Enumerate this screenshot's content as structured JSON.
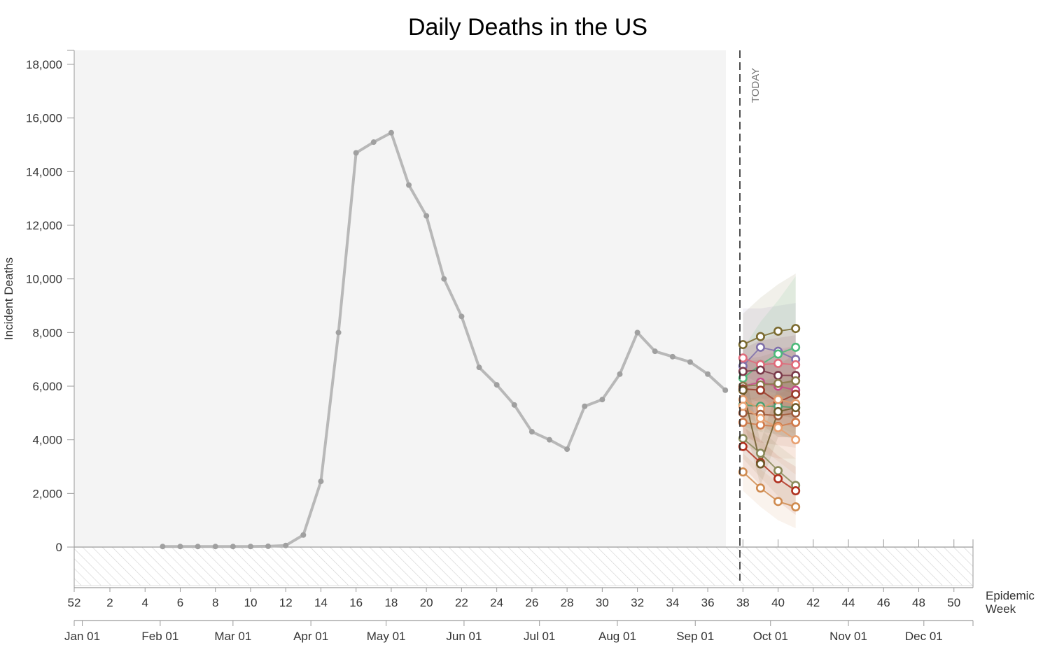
{
  "colors": {
    "background_panel": "#f4f4f4",
    "observed": "#b8b8b8",
    "observed_point": "#a0a0a0",
    "axis": "#9a9a9a",
    "today_line": "#222222",
    "hatch": "#d0d0d0"
  },
  "chart_data": {
    "type": "line",
    "title": "Daily Deaths in the US",
    "xlabel": "Epidemic Week",
    "ylabel": "Incident Deaths",
    "ylim": [
      -1500,
      18500
    ],
    "xlim": [
      51.7,
      50.6
    ],
    "grid": false,
    "today_label": "TODAY",
    "today_week": 37.8,
    "epiweek_ticks": [
      52,
      2,
      4,
      6,
      8,
      10,
      12,
      14,
      16,
      18,
      20,
      22,
      24,
      26,
      28,
      30,
      32,
      34,
      36,
      38,
      40,
      42,
      44,
      46,
      48,
      50
    ],
    "yticks": [
      0,
      2000,
      4000,
      6000,
      8000,
      10000,
      12000,
      14000,
      16000,
      18000
    ],
    "ytick_labels": [
      "0",
      "2,000",
      "4,000",
      "6,000",
      "8,000",
      "10,000",
      "12,000",
      "14,000",
      "16,000",
      "18,000"
    ],
    "month_ticks": [
      {
        "label": "Jan 01",
        "week": 0.43
      },
      {
        "label": "Feb 01",
        "week": 4.86
      },
      {
        "label": "Mar 01",
        "week": 9.0
      },
      {
        "label": "Apr 01",
        "week": 13.43
      },
      {
        "label": "May 01",
        "week": 17.71
      },
      {
        "label": "Jun 01",
        "week": 22.14
      },
      {
        "label": "Jul 01",
        "week": 26.43
      },
      {
        "label": "Aug 01",
        "week": 30.86
      },
      {
        "label": "Sep 01",
        "week": 35.29
      },
      {
        "label": "Oct 01",
        "week": 39.57
      },
      {
        "label": "Nov 01",
        "week": 44.0
      },
      {
        "label": "Dec 01",
        "week": 48.29
      }
    ],
    "observed": {
      "weeks": [
        5,
        6,
        7,
        8,
        9,
        10,
        11,
        12,
        13,
        14,
        15,
        16,
        17,
        18,
        19,
        20,
        21,
        22,
        23,
        24,
        25,
        26,
        27,
        28,
        29,
        30,
        31,
        32,
        33,
        34,
        35,
        36,
        37
      ],
      "values": [
        20,
        20,
        20,
        20,
        20,
        20,
        30,
        60,
        450,
        2450,
        8000,
        14700,
        15100,
        15450,
        13500,
        12350,
        10000,
        8600,
        6700,
        6050,
        5300,
        4300,
        4000,
        3650,
        5250,
        5500,
        6450,
        8000,
        7300,
        7100,
        6900,
        6450,
        5850
      ]
    },
    "forecast_weeks": [
      38,
      39,
      40,
      41
    ],
    "series": [
      {
        "color": "#7a6a2e",
        "values": [
          7550,
          7850,
          8050,
          8150
        ],
        "lower": [
          6400,
          6100,
          5900,
          5700
        ],
        "upper": [
          8700,
          9300,
          9800,
          10200
        ]
      },
      {
        "color": "#7f6faa",
        "values": [
          6750,
          7450,
          7300,
          7000
        ],
        "lower": [
          5400,
          5600,
          5100,
          4700
        ],
        "upper": [
          8900,
          8900,
          9000,
          9100
        ]
      },
      {
        "color": "#4cba7a",
        "values": [
          6300,
          6800,
          7200,
          7450
        ],
        "lower": [
          5300,
          5500,
          5600,
          5600
        ],
        "upper": [
          7400,
          8400,
          9200,
          10100
        ]
      },
      {
        "color": "#e06a7a",
        "values": [
          7050,
          6800,
          6850,
          6800
        ],
        "lower": [
          6300,
          5900,
          5700,
          5500
        ],
        "upper": [
          7700,
          7700,
          8000,
          8100
        ]
      },
      {
        "color": "#7a3a4a",
        "values": [
          6550,
          6600,
          6400,
          6400
        ],
        "lower": [
          5600,
          5400,
          5100,
          4900
        ],
        "upper": [
          7400,
          7700,
          7800,
          7900
        ]
      },
      {
        "color": "#c84a8a",
        "values": [
          6000,
          6150,
          6000,
          5850
        ],
        "lower": [
          5000,
          5000,
          4700,
          4400
        ],
        "upper": [
          6900,
          7300,
          7400,
          7500
        ]
      },
      {
        "color": "#8a7a4a",
        "values": [
          6000,
          6050,
          6100,
          6200
        ],
        "lower": [
          5100,
          5000,
          4900,
          4800
        ],
        "upper": [
          7000,
          7100,
          7300,
          7500
        ]
      },
      {
        "color": "#9a3a2a",
        "values": [
          5900,
          5850,
          5400,
          5700
        ],
        "lower": [
          4900,
          4600,
          4100,
          4100
        ],
        "upper": [
          6900,
          7000,
          6800,
          7200
        ]
      },
      {
        "color": "#4aa070",
        "values": [
          5300,
          5250,
          5250,
          5200
        ],
        "lower": [
          4500,
          4300,
          4200,
          4000
        ],
        "upper": [
          6100,
          6200,
          6300,
          6400
        ]
      },
      {
        "color": "#e29a6a",
        "values": [
          5500,
          5150,
          5500,
          5350
        ],
        "lower": [
          4700,
          4300,
          4500,
          4200
        ],
        "upper": [
          6300,
          6100,
          6500,
          6500
        ]
      },
      {
        "color": "#a05a3a",
        "values": [
          5000,
          4950,
          4900,
          5000
        ],
        "lower": [
          4100,
          3900,
          3800,
          3700
        ],
        "upper": [
          5900,
          6000,
          6100,
          6300
        ]
      },
      {
        "color": "#d07a4a",
        "values": [
          4650,
          4550,
          4500,
          4650
        ],
        "lower": [
          3800,
          3500,
          3300,
          3300
        ],
        "upper": [
          5500,
          5600,
          5700,
          6000
        ]
      },
      {
        "color": "#e8a070",
        "values": [
          5250,
          4800,
          4450,
          4000
        ],
        "lower": [
          4300,
          3700,
          3200,
          2700
        ],
        "upper": [
          6200,
          5900,
          5700,
          5300
        ]
      },
      {
        "color": "#8a8a5a",
        "values": [
          4050,
          3500,
          2850,
          2300
        ],
        "lower": [
          3300,
          2600,
          1900,
          1300
        ],
        "upper": [
          4800,
          4400,
          3800,
          3300
        ]
      },
      {
        "color": "#b0301e",
        "values": [
          3750,
          3150,
          2550,
          2100
        ],
        "lower": [
          3000,
          2300,
          1700,
          1200
        ],
        "upper": [
          4500,
          4000,
          3400,
          3000
        ]
      },
      {
        "color": "#cf8a4e",
        "values": [
          2800,
          2200,
          1700,
          1500
        ],
        "lower": [
          2100,
          1500,
          1000,
          700
        ],
        "upper": [
          3500,
          2900,
          2400,
          2300
        ]
      },
      {
        "color": "#6e5a2a",
        "values": [
          5850,
          3100,
          5050,
          5200
        ],
        "lower": [
          4800,
          2300,
          4100,
          4100
        ],
        "upper": [
          6900,
          3900,
          6000,
          6300
        ]
      }
    ]
  }
}
